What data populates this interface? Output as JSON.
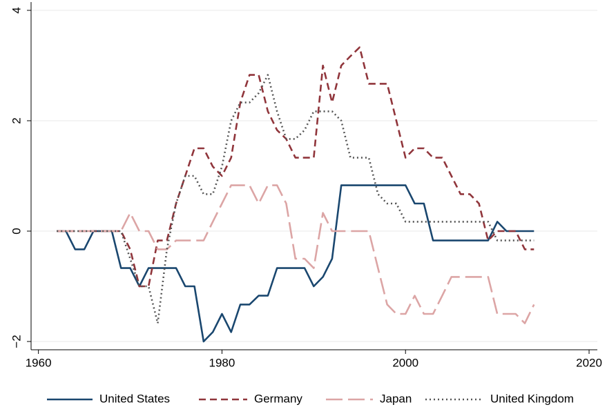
{
  "chart_data": {
    "type": "line",
    "x": [
      1962,
      1963,
      1964,
      1965,
      1966,
      1967,
      1968,
      1969,
      1970,
      1971,
      1972,
      1973,
      1974,
      1975,
      1976,
      1977,
      1978,
      1979,
      1980,
      1981,
      1982,
      1983,
      1984,
      1985,
      1986,
      1987,
      1988,
      1989,
      1990,
      1991,
      1992,
      1993,
      1994,
      1995,
      1996,
      1997,
      1998,
      1999,
      2000,
      2001,
      2002,
      2003,
      2004,
      2005,
      2006,
      2007,
      2008,
      2009,
      2010,
      2011,
      2012,
      2013,
      2014
    ],
    "series": [
      {
        "name": "United States",
        "color": "#1a476f",
        "dash": "solid",
        "values": [
          0,
          0,
          -0.33,
          -0.33,
          0,
          0,
          0,
          -0.67,
          -0.67,
          -1,
          -0.67,
          -0.67,
          -0.67,
          -0.67,
          -1,
          -1,
          -2,
          -1.83,
          -1.5,
          -1.83,
          -1.33,
          -1.33,
          -1.17,
          -1.17,
          -0.67,
          -0.67,
          -0.67,
          -0.67,
          -1,
          -0.83,
          -0.5,
          0.83,
          0.83,
          0.83,
          0.83,
          0.83,
          0.83,
          0.83,
          0.83,
          0.5,
          0.5,
          -0.17,
          -0.17,
          -0.17,
          -0.17,
          -0.17,
          -0.17,
          -0.17,
          0.17,
          0,
          0,
          0,
          0
        ]
      },
      {
        "name": "Germany",
        "color": "#90353b",
        "dash": "dash",
        "values": [
          0,
          0,
          0,
          0,
          0,
          0,
          0,
          0,
          -0.33,
          -1,
          -1,
          -0.17,
          -0.17,
          0.5,
          1,
          1.5,
          1.5,
          1.17,
          1,
          1.33,
          2.33,
          2.83,
          2.83,
          2.17,
          1.83,
          1.67,
          1.33,
          1.33,
          1.33,
          3,
          2.33,
          3,
          3.17,
          3.33,
          2.67,
          2.67,
          2.67,
          2,
          1.33,
          1.5,
          1.5,
          1.33,
          1.33,
          1,
          0.67,
          0.67,
          0.5,
          -0.17,
          0,
          0,
          0,
          -0.33,
          -0.33
        ]
      },
      {
        "name": "Japan",
        "color": "#dca5a5",
        "dash": "longdash",
        "values": [
          0,
          0,
          0,
          0,
          0,
          0,
          0,
          0,
          0.33,
          0,
          0,
          -0.33,
          -0.33,
          -0.17,
          -0.17,
          -0.17,
          -0.17,
          0.17,
          0.5,
          0.83,
          0.83,
          0.83,
          0.5,
          0.83,
          0.83,
          0.5,
          -0.5,
          -0.5,
          -0.67,
          0.33,
          0,
          0,
          0,
          0,
          0,
          -0.67,
          -1.33,
          -1.5,
          -1.5,
          -1.17,
          -1.5,
          -1.5,
          -1.17,
          -0.83,
          -0.83,
          -0.83,
          -0.83,
          -0.83,
          -1.5,
          -1.5,
          -1.5,
          -1.67,
          -1.33
        ]
      },
      {
        "name": "United Kingdom",
        "color": "#555555",
        "dash": "dot",
        "values": [
          0,
          0,
          0,
          0,
          0,
          0,
          0,
          0,
          -0.5,
          -1,
          -1,
          -1.67,
          -0.33,
          0.5,
          1,
          1,
          0.67,
          0.67,
          1.17,
          2,
          2.33,
          2.33,
          2.5,
          2.83,
          2.17,
          1.67,
          1.67,
          1.83,
          2.17,
          2.17,
          2.17,
          2,
          1.33,
          1.33,
          1.33,
          0.67,
          0.5,
          0.5,
          0.17,
          0.17,
          0.17,
          0.17,
          0.17,
          0.17,
          0.17,
          0.17,
          0.17,
          0.17,
          -0.17,
          -0.17,
          -0.17,
          -0.17,
          -0.17
        ]
      }
    ],
    "xlim": [
      1959.2,
      2020.9
    ],
    "ylim": [
      -2.15,
      4.15
    ],
    "xticks": [
      1960,
      1980,
      2000,
      2020
    ],
    "yticks": [
      {
        "value": -2,
        "label": "−2"
      },
      0,
      2,
      4
    ],
    "grid": true,
    "legend": "bottom"
  }
}
